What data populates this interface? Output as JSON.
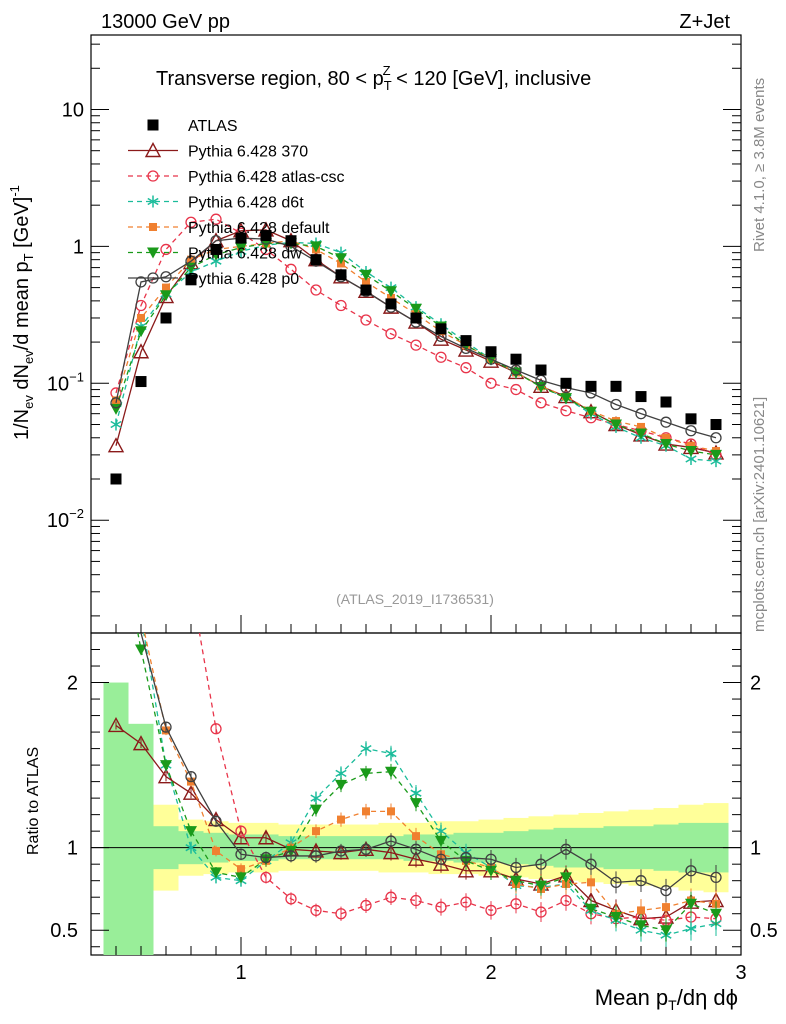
{
  "header": {
    "left": "13000 GeV pp",
    "right": "Z+Jet"
  },
  "side_text": {
    "rivet": "Rivet 4.1.0, ≥ 3.8M events",
    "mcplots": "mcplots.cern.ch [arXiv:2401.10621]"
  },
  "chart_data": {
    "type": "line",
    "title": "Transverse region, 80 < p_T^Z < 120 [GeV], inclusive",
    "analysis_id": "(ATLAS_2019_I1736531)",
    "xlabel": "Mean p_T/dη dϕ",
    "ylabel": "1/N_ev dN_ev/d mean p_T [GeV]^-1",
    "ratio_ylabel": "Ratio to ATLAS",
    "xlim": [
      0.4,
      3.0
    ],
    "ylim": [
      0.0015,
      35
    ],
    "yscale": "log",
    "ratio_ylim": [
      0.35,
      2.3
    ],
    "x_ticks": [
      "1",
      "2",
      "3"
    ],
    "y_ticks": [
      "10^-2",
      "10^-1",
      "1",
      "10"
    ],
    "ratio_ticks": [
      "0.5",
      "1",
      "2"
    ],
    "x": [
      0.5,
      0.6,
      0.7,
      0.8,
      0.9,
      1.0,
      1.1,
      1.2,
      1.3,
      1.4,
      1.5,
      1.6,
      1.7,
      1.8,
      1.9,
      2.0,
      2.1,
      2.2,
      2.3,
      2.4,
      2.5,
      2.6,
      2.7,
      2.8,
      2.9
    ],
    "data": {
      "name": "ATLAS",
      "values": [
        0.02,
        0.103,
        0.3,
        0.57,
        0.95,
        1.15,
        1.2,
        1.1,
        0.8,
        0.62,
        0.48,
        0.38,
        0.3,
        0.25,
        0.205,
        0.17,
        0.15,
        0.125,
        0.1,
        0.095,
        0.095,
        0.08,
        0.073,
        0.055,
        0.05
      ]
    },
    "series": [
      {
        "name": "Pythia 6.428 370",
        "color": "#8b1a1a",
        "marker": "triangle-open",
        "values": [
          0.035,
          0.17,
          0.43,
          0.76,
          1.1,
          1.3,
          1.32,
          1.1,
          0.8,
          0.6,
          0.47,
          0.36,
          0.28,
          0.21,
          0.175,
          0.145,
          0.12,
          0.095,
          0.08,
          0.062,
          0.05,
          0.042,
          0.036,
          0.034,
          0.031
        ],
        "ratio": [
          1.74,
          1.63,
          1.43,
          1.33,
          1.17,
          1.06,
          1.06,
          0.99,
          0.98,
          0.97,
          0.99,
          0.97,
          0.93,
          0.9,
          0.86,
          0.86,
          0.81,
          0.78,
          0.83,
          0.68,
          0.62,
          0.57,
          0.58,
          0.67,
          0.68
        ]
      },
      {
        "name": "Pythia 6.428 atlas-csc",
        "color": "#e8344a",
        "marker": "circle-open",
        "values": [
          0.085,
          0.37,
          0.95,
          1.5,
          1.58,
          1.25,
          0.95,
          0.68,
          0.48,
          0.37,
          0.29,
          0.23,
          0.19,
          0.155,
          0.13,
          0.1,
          0.09,
          0.072,
          0.063,
          0.056,
          0.05,
          0.045,
          0.04,
          0.036,
          0.03
        ],
        "ratio": [
          4.2,
          3.5,
          3.0,
          2.6,
          1.72,
          1.1,
          0.82,
          0.69,
          0.62,
          0.6,
          0.65,
          0.7,
          0.68,
          0.64,
          0.67,
          0.62,
          0.66,
          0.61,
          0.68,
          0.6,
          0.57,
          0.58,
          0.56,
          0.58,
          0.57
        ]
      },
      {
        "name": "Pythia 6.428 d6t",
        "color": "#1bbc9b",
        "marker": "star",
        "values": [
          0.05,
          0.26,
          0.45,
          0.65,
          0.78,
          0.92,
          1.02,
          1.07,
          1.05,
          0.9,
          0.65,
          0.5,
          0.36,
          0.27,
          0.2,
          0.15,
          0.12,
          0.095,
          0.078,
          0.06,
          0.048,
          0.04,
          0.035,
          0.028,
          0.027
        ],
        "ratio": [
          2.5,
          2.4,
          1.5,
          1.0,
          0.82,
          0.8,
          0.92,
          1.03,
          1.3,
          1.45,
          1.6,
          1.57,
          1.33,
          1.1,
          0.97,
          0.88,
          0.77,
          0.76,
          0.78,
          0.62,
          0.56,
          0.5,
          0.47,
          0.51,
          0.54
        ]
      },
      {
        "name": "Pythia 6.428 default",
        "color": "#f08030",
        "marker": "square",
        "values": [
          0.075,
          0.3,
          0.5,
          0.8,
          0.95,
          1.0,
          1.05,
          1.1,
          0.95,
          0.75,
          0.55,
          0.42,
          0.32,
          0.24,
          0.19,
          0.15,
          0.12,
          0.095,
          0.08,
          0.063,
          0.053,
          0.048,
          0.04,
          0.035,
          0.032
        ],
        "ratio": [
          3.1,
          2.4,
          1.71,
          1.4,
          0.98,
          0.87,
          0.92,
          1.0,
          1.1,
          1.17,
          1.22,
          1.22,
          1.07,
          0.96,
          0.92,
          0.88,
          0.78,
          0.75,
          0.78,
          0.79,
          0.6,
          0.62,
          0.64,
          0.68,
          0.66
        ]
      },
      {
        "name": "Pythia 6.428 dw",
        "color": "#1a9a1a",
        "marker": "triangle-down",
        "values": [
          0.065,
          0.24,
          0.44,
          0.7,
          0.87,
          0.98,
          1.05,
          1.05,
          1.0,
          0.82,
          0.62,
          0.47,
          0.35,
          0.26,
          0.19,
          0.15,
          0.12,
          0.094,
          0.078,
          0.062,
          0.05,
          0.043,
          0.036,
          0.032,
          0.03
        ],
        "ratio": [
          3.0,
          2.2,
          1.5,
          1.1,
          0.85,
          0.82,
          0.93,
          0.98,
          1.23,
          1.38,
          1.45,
          1.46,
          1.27,
          1.04,
          0.92,
          0.86,
          0.8,
          0.77,
          0.82,
          0.63,
          0.58,
          0.53,
          0.5,
          0.66,
          0.6
        ]
      },
      {
        "name": "Pythia 6.428 p0",
        "color": "#404040",
        "marker": "circle-open",
        "values": [
          0.072,
          0.55,
          0.6,
          0.78,
          1.1,
          1.15,
          1.13,
          1.0,
          0.78,
          0.6,
          0.47,
          0.36,
          0.28,
          0.22,
          0.18,
          0.15,
          0.125,
          0.105,
          0.093,
          0.085,
          0.07,
          0.06,
          0.052,
          0.045,
          0.04
        ],
        "ratio": [
          3.5,
          2.3,
          1.73,
          1.43,
          1.16,
          0.96,
          0.94,
          0.95,
          0.95,
          0.98,
          0.99,
          1.04,
          0.99,
          0.93,
          0.94,
          0.93,
          0.88,
          0.9,
          0.99,
          0.9,
          0.79,
          0.8,
          0.74,
          0.86,
          0.82
        ]
      }
    ]
  }
}
